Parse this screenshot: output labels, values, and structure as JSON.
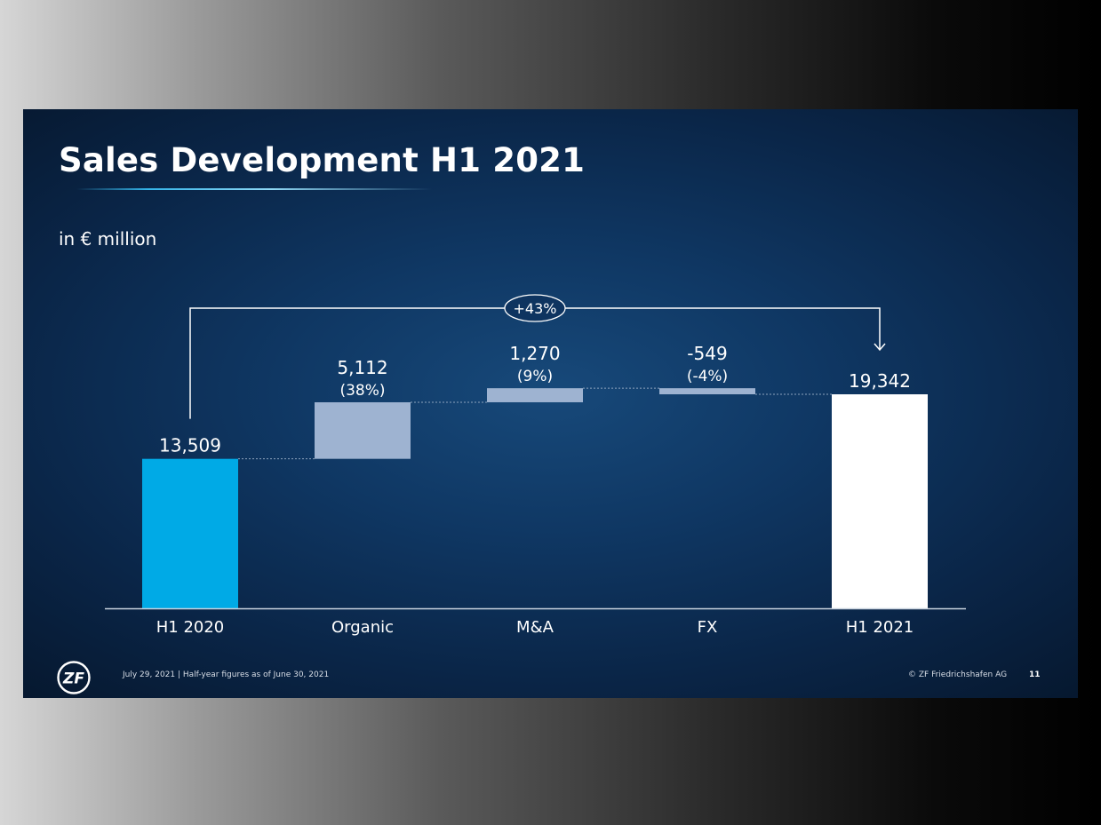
{
  "slide": {
    "title": "Sales Development H1 2021",
    "unit": "in € million",
    "footer_note": "July 29, 2021 | Half-year figures as of June 30, 2021",
    "copyright": "© ZF Friedrichshafen AG",
    "page_number": "11",
    "logo_text": "ZF"
  },
  "colors": {
    "start_bar": "#00aae6",
    "delta_bar": "#9eb3d1",
    "end_bar": "#ffffff",
    "text": "#ffffff"
  },
  "chart_data": {
    "type": "bar",
    "subtype": "waterfall",
    "title": "Sales Development H1 2021",
    "unit": "in € million",
    "categories": [
      "H1 2020",
      "Organic",
      "M&A",
      "FX",
      "H1 2021"
    ],
    "values": [
      13509,
      5112,
      1270,
      -549,
      19342
    ],
    "value_labels": [
      "13,509",
      "5,112",
      "1,270",
      "-549",
      "19,342"
    ],
    "percent_labels": [
      "",
      "(38%)",
      "(9%)",
      "(-4%)",
      ""
    ],
    "kinds": [
      "total",
      "delta",
      "delta",
      "delta",
      "total"
    ],
    "total_change_label": "+43%",
    "ylim": [
      0,
      19342
    ],
    "grid": false,
    "legend": "none"
  }
}
